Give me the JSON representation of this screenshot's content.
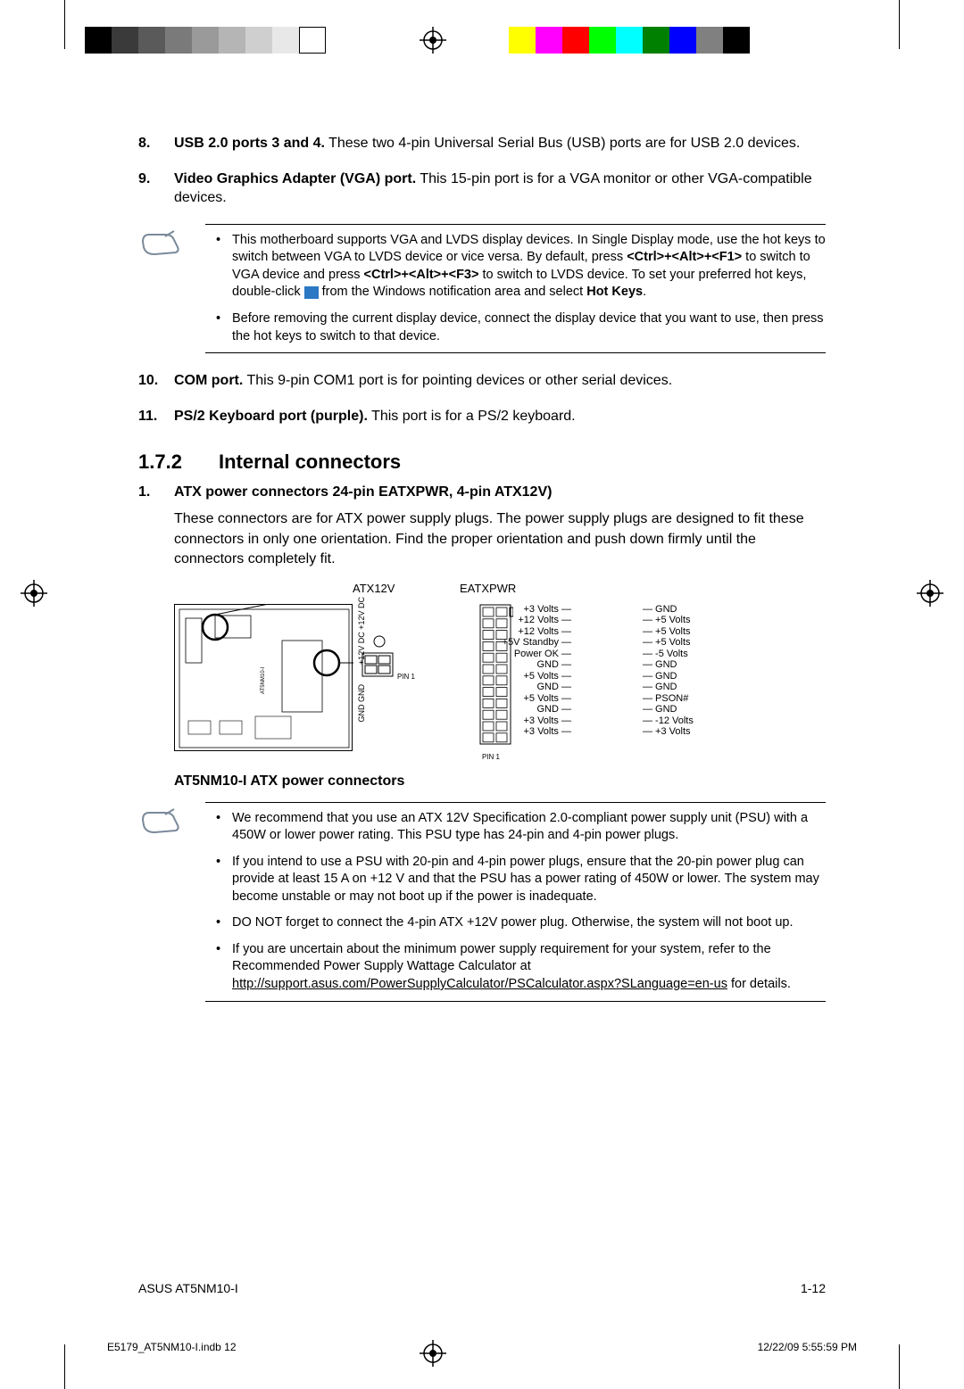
{
  "colorbar_left": [
    "#000000",
    "#3a3a3a",
    "#5a5a5a",
    "#7a7a7a",
    "#9a9a9a",
    "#b5b5b5",
    "#cfcfcf",
    "#e8e8e8",
    "#ffffff"
  ],
  "colorbar_right": [
    "#ffff00",
    "#ff00ff",
    "#ff0000",
    "#00ff00",
    "#00ffff",
    "#008000",
    "#0000ff",
    "#808080",
    "#000000"
  ],
  "items": {
    "i8": {
      "num": "8.",
      "bold": "USB 2.0 ports 3 and 4.",
      "text": " These two 4-pin Universal Serial Bus (USB) ports are for USB 2.0 devices."
    },
    "i9": {
      "num": "9.",
      "bold": "Video Graphics Adapter (VGA) port.",
      "text": " This 15-pin port is for a VGA monitor or other VGA-compatible devices."
    },
    "i10": {
      "num": "10.",
      "bold": "COM port.",
      "text": " This 9-pin COM1 port is for pointing devices or other serial devices."
    },
    "i11": {
      "num": "11.",
      "bold": "PS/2 Keyboard port (purple).",
      "text": " This port is for a PS/2 keyboard."
    }
  },
  "note1": {
    "b1a": "This motherboard supports VGA and LVDS display devices. In Single Display mode, use the hot keys to switch between VGA to LVDS device or vice versa. By default, press ",
    "b1b": "<Ctrl>+<Alt>+<F1>",
    "b1c": " to switch to VGA device and press ",
    "b1d": "<Ctrl>+<Alt>+<F3>",
    "b1e": " to switch to LVDS device. To set your preferred hot keys, double-click ",
    "b1f": " from the Windows notification area and select ",
    "b1g": "Hot Keys",
    "b1h": ".",
    "b2": "Before removing the current display device, connect the display device that you want to use, then press the hot keys to switch to that device."
  },
  "section": {
    "num": "1.7.2",
    "title": "Internal connectors"
  },
  "sub1": {
    "num": "1.",
    "title": "ATX power connectors 24-pin EATXPWR, 4-pin ATX12V)",
    "body": "These connectors are for ATX power supply plugs. The power supply plugs are designed to fit these connectors in only one orientation. Find the proper orientation and push down firmly until the connectors completely fit."
  },
  "diagram": {
    "label_atx12v": "ATX12V",
    "label_eatxpwr": "EATXPWR",
    "atx12v_top": [
      "+12V DC",
      "+12V DC"
    ],
    "atx12v_bot": [
      "GND",
      "GND"
    ],
    "pin1": "PIN 1",
    "eatxpwr_left": [
      "+3 Volts",
      "+12 Volts",
      "+12 Volts",
      "+5V Standby",
      "Power OK",
      "GND",
      "+5 Volts",
      "GND",
      "+5 Volts",
      "GND",
      "+3 Volts",
      "+3 Volts"
    ],
    "eatxpwr_right": [
      "GND",
      "+5 Volts",
      "+5 Volts",
      "+5 Volts",
      "-5 Volts",
      "GND",
      "GND",
      "GND",
      "PSON#",
      "GND",
      "-12 Volts",
      "+3 Volts"
    ],
    "caption": "AT5NM10-I ATX power connectors",
    "board_label": "AT5NM10-I"
  },
  "note2": {
    "b1": "We recommend that you use an ATX 12V Specification 2.0-compliant power supply unit (PSU) with a 450W or lower power rating. This PSU type has 24-pin and 4-pin power plugs.",
    "b2": "If you intend to use a PSU with 20-pin and 4-pin power plugs, ensure that the 20-pin power plug can provide at least 15 A on +12 V and that the PSU has a power rating of 450W or lower. The system may become unstable or may not boot up if the power is inadequate.",
    "b3": "DO NOT forget to connect the 4-pin ATX +12V power plug. Otherwise, the system will not boot up.",
    "b4a": "If you are uncertain about the minimum power supply requirement for your system, refer to the Recommended Power Supply Wattage Calculator at ",
    "b4b": "http://support.asus.com/PowerSupplyCalculator/PSCalculator.aspx?SLanguage=en-us",
    "b4c": " for details."
  },
  "footer": {
    "left": "ASUS AT5NM10-I",
    "right": "1-12"
  },
  "imprint": {
    "left": "E5179_AT5NM10-I.indb   12",
    "right": "12/22/09   5:55:59 PM"
  }
}
